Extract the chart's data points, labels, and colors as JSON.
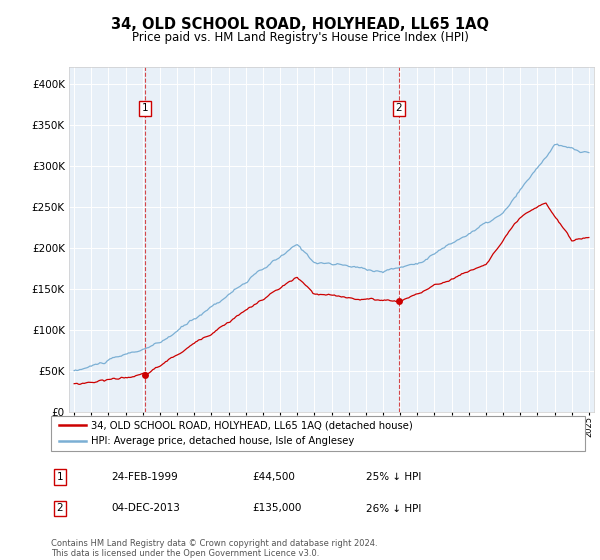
{
  "title": "34, OLD SCHOOL ROAD, HOLYHEAD, LL65 1AQ",
  "subtitle": "Price paid vs. HM Land Registry's House Price Index (HPI)",
  "legend_line1": "34, OLD SCHOOL ROAD, HOLYHEAD, LL65 1AQ (detached house)",
  "legend_line2": "HPI: Average price, detached house, Isle of Anglesey",
  "annotation1_date": "24-FEB-1999",
  "annotation1_price": "£44,500",
  "annotation1_pct": "25% ↓ HPI",
  "annotation2_date": "04-DEC-2013",
  "annotation2_price": "£135,000",
  "annotation2_pct": "26% ↓ HPI",
  "footer": "Contains HM Land Registry data © Crown copyright and database right 2024.\nThis data is licensed under the Open Government Licence v3.0.",
  "sale1_x": 1999.15,
  "sale1_y": 44500,
  "sale2_x": 2013.92,
  "sale2_y": 135000,
  "red_color": "#cc0000",
  "blue_color": "#7bafd4",
  "background_color": "#dce6f1",
  "plot_bg": "#e8f0f8",
  "ylim": [
    0,
    420000
  ],
  "xlim_left": 1994.7,
  "xlim_right": 2025.3
}
